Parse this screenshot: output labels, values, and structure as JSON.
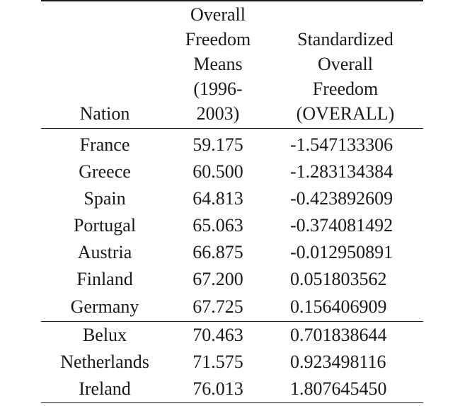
{
  "table": {
    "headers": {
      "nation": "Nation",
      "means_lines": [
        "Overall",
        "Freedom",
        "Means",
        "(1996-",
        "2003)"
      ],
      "std_lines": [
        "Standardized",
        "Overall",
        "Freedom",
        "(OVERALL)"
      ]
    },
    "rows": [
      {
        "nation": "France",
        "means": "59.175",
        "std": "-1.547133306"
      },
      {
        "nation": "Greece",
        "means": "60.500",
        "std": "-1.283134384"
      },
      {
        "nation": "Spain",
        "means": "64.813",
        "std": "-0.423892609"
      },
      {
        "nation": "Portugal",
        "means": "65.063",
        "std": "-0.374081492"
      },
      {
        "nation": "Austria",
        "means": "66.875",
        "std": "-0.012950891"
      },
      {
        "nation": "Finland",
        "means": "67.200",
        "std": "0.051803562"
      },
      {
        "nation": "Germany",
        "means": "67.725",
        "std": "0.156406909"
      },
      {
        "nation": "Belux",
        "means": "70.463",
        "std": "0.701838644"
      },
      {
        "nation": "Netherlands",
        "means": "71.575",
        "std": "0.923498116"
      },
      {
        "nation": "Ireland",
        "means": "76.013",
        "std": "1.807645450"
      }
    ]
  }
}
